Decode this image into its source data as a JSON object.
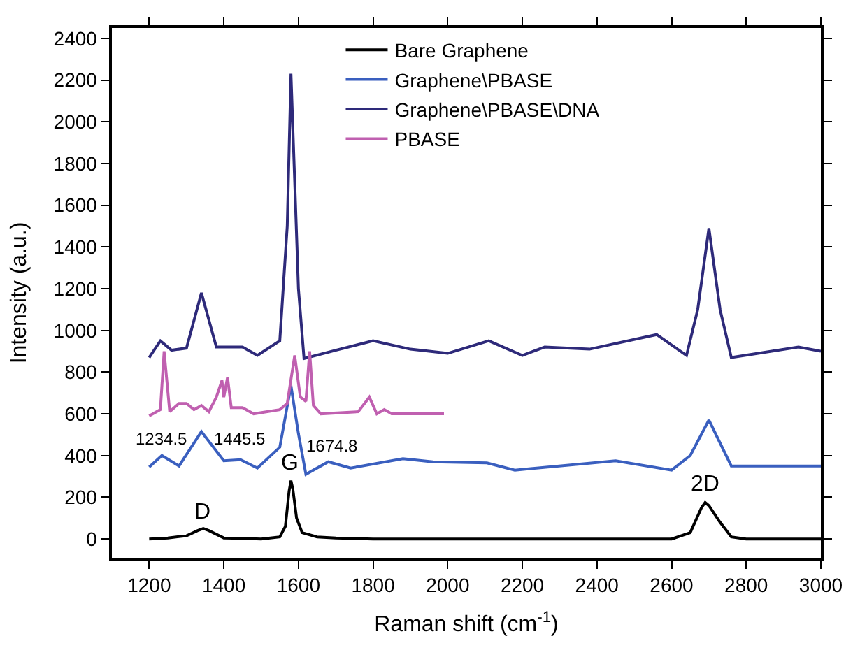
{
  "chart_data": {
    "type": "line",
    "xlabel": "Raman shift (cm$^{-1}$)",
    "ylabel": "Intensity (a.u.)",
    "xlim": [
      1100,
      3000
    ],
    "ylim": [
      -90,
      2450
    ],
    "xticks": [
      1200,
      1400,
      1600,
      1800,
      2000,
      2200,
      2400,
      2600,
      2800,
      3000
    ],
    "yticks": [
      0,
      200,
      400,
      600,
      800,
      1000,
      1200,
      1400,
      1600,
      1800,
      2000,
      2200,
      2400
    ],
    "legend": "top right",
    "marker": "none",
    "line_style": "solid",
    "series": [
      {
        "name": "Bare Graphene",
        "color": "#000000",
        "x": [
          1200,
          1250,
          1300,
          1330,
          1345,
          1360,
          1400,
          1450,
          1500,
          1550,
          1565,
          1575,
          1580,
          1585,
          1595,
          1610,
          1650,
          1700,
          1800,
          2000,
          2200,
          2400,
          2600,
          2650,
          2680,
          2690,
          2700,
          2730,
          2760,
          2800,
          3000
        ],
        "values": [
          0,
          5,
          15,
          40,
          50,
          40,
          5,
          3,
          0,
          10,
          60,
          230,
          280,
          240,
          100,
          30,
          10,
          5,
          0,
          0,
          0,
          0,
          0,
          30,
          150,
          175,
          160,
          80,
          10,
          0,
          0
        ]
      },
      {
        "name": "Graphene\\PBASE",
        "color": "#3a5fbf",
        "x": [
          1200,
          1234,
          1280,
          1340,
          1400,
          1445,
          1490,
          1550,
          1580,
          1600,
          1620,
          1680,
          1740,
          1880,
          1960,
          2105,
          2180,
          2450,
          2600,
          2650,
          2700,
          2760,
          3000
        ],
        "values": [
          345,
          400,
          350,
          515,
          375,
          380,
          340,
          440,
          735,
          505,
          310,
          370,
          340,
          385,
          370,
          365,
          330,
          375,
          330,
          400,
          570,
          350,
          350
        ]
      },
      {
        "name": "Graphene\\PBASE\\DNA",
        "color": "#2e2a7a",
        "x": [
          1200,
          1230,
          1260,
          1300,
          1340,
          1380,
          1450,
          1490,
          1550,
          1570,
          1580,
          1600,
          1615,
          1700,
          1800,
          1900,
          2000,
          2110,
          2200,
          2260,
          2380,
          2560,
          2640,
          2670,
          2700,
          2730,
          2760,
          2940,
          3000
        ],
        "values": [
          870,
          950,
          905,
          915,
          1180,
          920,
          920,
          880,
          950,
          1500,
          2230,
          1200,
          865,
          905,
          950,
          910,
          890,
          950,
          880,
          920,
          910,
          980,
          880,
          1100,
          1490,
          1100,
          870,
          920,
          900
        ]
      },
      {
        "name": "PBASE",
        "color": "#c060b0",
        "x": [
          1200,
          1230,
          1240,
          1255,
          1280,
          1300,
          1320,
          1340,
          1360,
          1380,
          1395,
          1400,
          1410,
          1420,
          1450,
          1480,
          1550,
          1570,
          1590,
          1605,
          1620,
          1630,
          1640,
          1660,
          1760,
          1790,
          1810,
          1830,
          1850,
          1990
        ],
        "values": [
          590,
          620,
          900,
          610,
          650,
          650,
          620,
          640,
          610,
          680,
          760,
          680,
          775,
          630,
          630,
          600,
          620,
          650,
          880,
          680,
          660,
          900,
          640,
          600,
          610,
          680,
          600,
          620,
          600,
          600
        ]
      }
    ],
    "annotations": [
      "D",
      "G",
      "2D",
      "1234.5",
      "1445.5",
      "1674.8"
    ]
  }
}
